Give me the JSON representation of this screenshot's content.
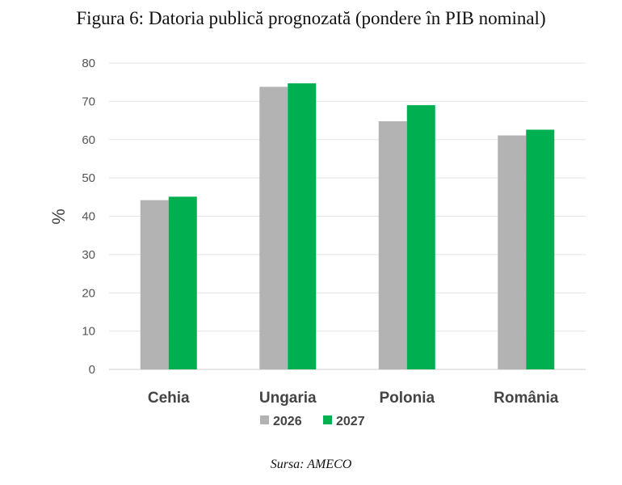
{
  "chart_data": {
    "type": "bar",
    "title": "Figura 6: Datoria publică prognozată (pondere în PIB nominal)",
    "ylabel": "%",
    "xlabel": "",
    "ylim": [
      0,
      80
    ],
    "yticks": [
      0,
      10,
      20,
      30,
      40,
      50,
      60,
      70,
      80
    ],
    "grid": true,
    "legend_position": "bottom",
    "categories": [
      "Cehia",
      "Ungaria",
      "Polonia",
      "România"
    ],
    "series": [
      {
        "name": "2026",
        "color": "#b3b3b3",
        "values": [
          44.2,
          73.8,
          64.8,
          61.1
        ]
      },
      {
        "name": "2027",
        "color": "#00b050",
        "values": [
          45.1,
          74.7,
          69.0,
          62.6
        ]
      }
    ],
    "source": "Sursa: AMECO"
  }
}
